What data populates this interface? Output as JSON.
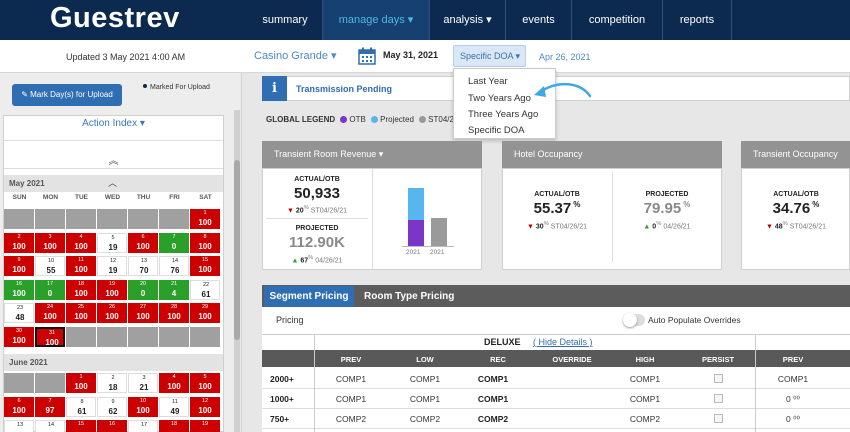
{
  "nav": {
    "logo": "Guestrev",
    "items": [
      {
        "label": "summary"
      },
      {
        "label": "manage days ▾"
      },
      {
        "label": "analysis ▾"
      },
      {
        "label": "events"
      },
      {
        "label": "competition"
      },
      {
        "label": "reports"
      }
    ],
    "active_color": "#4fb6ea",
    "bg_color": "#0c2a4f"
  },
  "subbar": {
    "updated": "Updated 3 May 2021 4:00 AM",
    "hotel": "Casino Grande ▾",
    "date": "May 31, 2021",
    "doa_button": "Specific DOA ▾",
    "reference_date": "Apr 26, 2021"
  },
  "doa_menu": {
    "options": [
      "Last Year",
      "Two Years Ago",
      "Three Years Ago",
      "Specific DOA"
    ]
  },
  "left": {
    "upload_button": "Mark Day(s) for Upload",
    "marked_label": "Marked For Upload",
    "action_index": "Action Index ▾",
    "up_arrows": "︽",
    "weekdays": [
      "SUN",
      "MON",
      "TUE",
      "WED",
      "THU",
      "FRI",
      "SAT"
    ],
    "months": [
      {
        "label": "May 2021",
        "toggle": "︿",
        "cells": [
          {
            "d": "",
            "v": "",
            "c": "gray"
          },
          {
            "d": "",
            "v": "",
            "c": "gray"
          },
          {
            "d": "",
            "v": "",
            "c": "gray"
          },
          {
            "d": "",
            "v": "",
            "c": "gray"
          },
          {
            "d": "",
            "v": "",
            "c": "gray"
          },
          {
            "d": "",
            "v": "",
            "c": "gray"
          },
          {
            "d": "1",
            "v": "100",
            "c": "red"
          },
          {
            "d": "2",
            "v": "100",
            "c": "red"
          },
          {
            "d": "3",
            "v": "100",
            "c": "red"
          },
          {
            "d": "4",
            "v": "100",
            "c": "red"
          },
          {
            "d": "5",
            "v": "19",
            "c": "white"
          },
          {
            "d": "6",
            "v": "100",
            "c": "red"
          },
          {
            "d": "7",
            "v": "0",
            "c": "green"
          },
          {
            "d": "8",
            "v": "100",
            "c": "red"
          },
          {
            "d": "9",
            "v": "100",
            "c": "red"
          },
          {
            "d": "10",
            "v": "55",
            "c": "white"
          },
          {
            "d": "11",
            "v": "100",
            "c": "red"
          },
          {
            "d": "12",
            "v": "19",
            "c": "white"
          },
          {
            "d": "13",
            "v": "70",
            "c": "white"
          },
          {
            "d": "14",
            "v": "76",
            "c": "white"
          },
          {
            "d": "15",
            "v": "100",
            "c": "red"
          },
          {
            "d": "16",
            "v": "100",
            "c": "green"
          },
          {
            "d": "17",
            "v": "0",
            "c": "green"
          },
          {
            "d": "18",
            "v": "100",
            "c": "red"
          },
          {
            "d": "19",
            "v": "100",
            "c": "red"
          },
          {
            "d": "20",
            "v": "0",
            "c": "green"
          },
          {
            "d": "21",
            "v": "4",
            "c": "green"
          },
          {
            "d": "22",
            "v": "61",
            "c": "white"
          },
          {
            "d": "23",
            "v": "48",
            "c": "white"
          },
          {
            "d": "24",
            "v": "100",
            "c": "red"
          },
          {
            "d": "25",
            "v": "100",
            "c": "red"
          },
          {
            "d": "26",
            "v": "100",
            "c": "red"
          },
          {
            "d": "27",
            "v": "100",
            "c": "red"
          },
          {
            "d": "28",
            "v": "100",
            "c": "red"
          },
          {
            "d": "29",
            "v": "100",
            "c": "red"
          },
          {
            "d": "30",
            "v": "100",
            "c": "red"
          },
          {
            "d": "31",
            "v": "100",
            "c": "sel"
          },
          {
            "d": "",
            "v": "",
            "c": "gray"
          },
          {
            "d": "",
            "v": "",
            "c": "gray"
          },
          {
            "d": "",
            "v": "",
            "c": "gray"
          },
          {
            "d": "",
            "v": "",
            "c": "gray"
          },
          {
            "d": "",
            "v": "",
            "c": "gray"
          }
        ]
      },
      {
        "label": "June 2021",
        "toggle": "",
        "cells": [
          {
            "d": "",
            "v": "",
            "c": "gray"
          },
          {
            "d": "",
            "v": "",
            "c": "gray"
          },
          {
            "d": "1",
            "v": "100",
            "c": "red"
          },
          {
            "d": "2",
            "v": "18",
            "c": "white"
          },
          {
            "d": "3",
            "v": "21",
            "c": "white"
          },
          {
            "d": "4",
            "v": "100",
            "c": "red"
          },
          {
            "d": "5",
            "v": "100",
            "c": "red"
          },
          {
            "d": "6",
            "v": "100",
            "c": "red"
          },
          {
            "d": "7",
            "v": "97",
            "c": "red"
          },
          {
            "d": "8",
            "v": "61",
            "c": "white"
          },
          {
            "d": "9",
            "v": "62",
            "c": "white"
          },
          {
            "d": "10",
            "v": "100",
            "c": "red"
          },
          {
            "d": "11",
            "v": "49",
            "c": "white"
          },
          {
            "d": "12",
            "v": "100",
            "c": "red"
          },
          {
            "d": "13",
            "v": "",
            "c": "white"
          },
          {
            "d": "14",
            "v": "",
            "c": "white"
          },
          {
            "d": "15",
            "v": "",
            "c": "red"
          },
          {
            "d": "16",
            "v": "",
            "c": "red"
          },
          {
            "d": "17",
            "v": "",
            "c": "white"
          },
          {
            "d": "18",
            "v": "",
            "c": "red"
          },
          {
            "d": "19",
            "v": "",
            "c": "red"
          }
        ]
      }
    ]
  },
  "transmission": {
    "icon": "i",
    "text": "Transmission Pending"
  },
  "legend": {
    "title": "GLOBAL LEGEND",
    "items": [
      {
        "label": "OTB",
        "color": "#7b35c7"
      },
      {
        "label": "Projected",
        "color": "#58b6ee"
      },
      {
        "label": "ST04/26",
        "color": "#9a9a9a"
      }
    ]
  },
  "cards": {
    "trr": {
      "title": "Transient Room Revenue ▾",
      "actual_label": "ACTUAL/OTB",
      "actual_value": "50,933",
      "actual_delta": "20",
      "actual_unit": "%",
      "actual_ref": "ST04/26/21",
      "proj_label": "PROJECTED",
      "proj_value": "112.90K",
      "proj_delta": "67",
      "proj_unit": "%",
      "proj_ref": "04/26/21",
      "bar_years": [
        "2021",
        "2021"
      ]
    },
    "occ": {
      "title": "Hotel Occupancy",
      "actual_label": "ACTUAL/OTB",
      "actual_value": "55.37",
      "actual_pct": "%",
      "actual_delta": "30",
      "actual_unit": "%",
      "actual_ref": "ST04/26/21",
      "proj_label": "PROJECTED",
      "proj_value": "79.95",
      "proj_pct": "%",
      "proj_delta": "0",
      "proj_unit": "%",
      "proj_ref": "04/26/21"
    },
    "tocc": {
      "title": "Transient Occupancy",
      "actual_label": "ACTUAL/OTB",
      "actual_value": "34.76",
      "actual_pct": "%",
      "actual_delta": "48",
      "actual_unit": "%",
      "actual_ref": "ST04/26/21"
    }
  },
  "tabs": [
    {
      "label": "Segment Pricing"
    },
    {
      "label": "Room Type Pricing"
    }
  ],
  "pricing": {
    "label": "Pricing",
    "auto_populate": "Auto Populate Overrides",
    "room_type": "DELUXE",
    "hide_details": "( Hide Details )",
    "columns": [
      "PREV",
      "LOW",
      "REC",
      "OVERRIDE",
      "HIGH",
      "PERSIST",
      "PREV"
    ],
    "rows": [
      {
        "seg": "2000+",
        "prev": "COMP1",
        "low": "COMP1",
        "rec": "COMP1",
        "high": "COMP1",
        "prev2": "COMP1"
      },
      {
        "seg": "1000+",
        "prev": "COMP1",
        "low": "COMP1",
        "rec": "COMP1",
        "high": "COMP1",
        "prev2": "0 ⁰⁰"
      },
      {
        "seg": "750+",
        "prev": "COMP2",
        "low": "COMP2",
        "rec": "COMP2",
        "high": "COMP2",
        "prev2": "0 ⁰⁰"
      }
    ]
  }
}
